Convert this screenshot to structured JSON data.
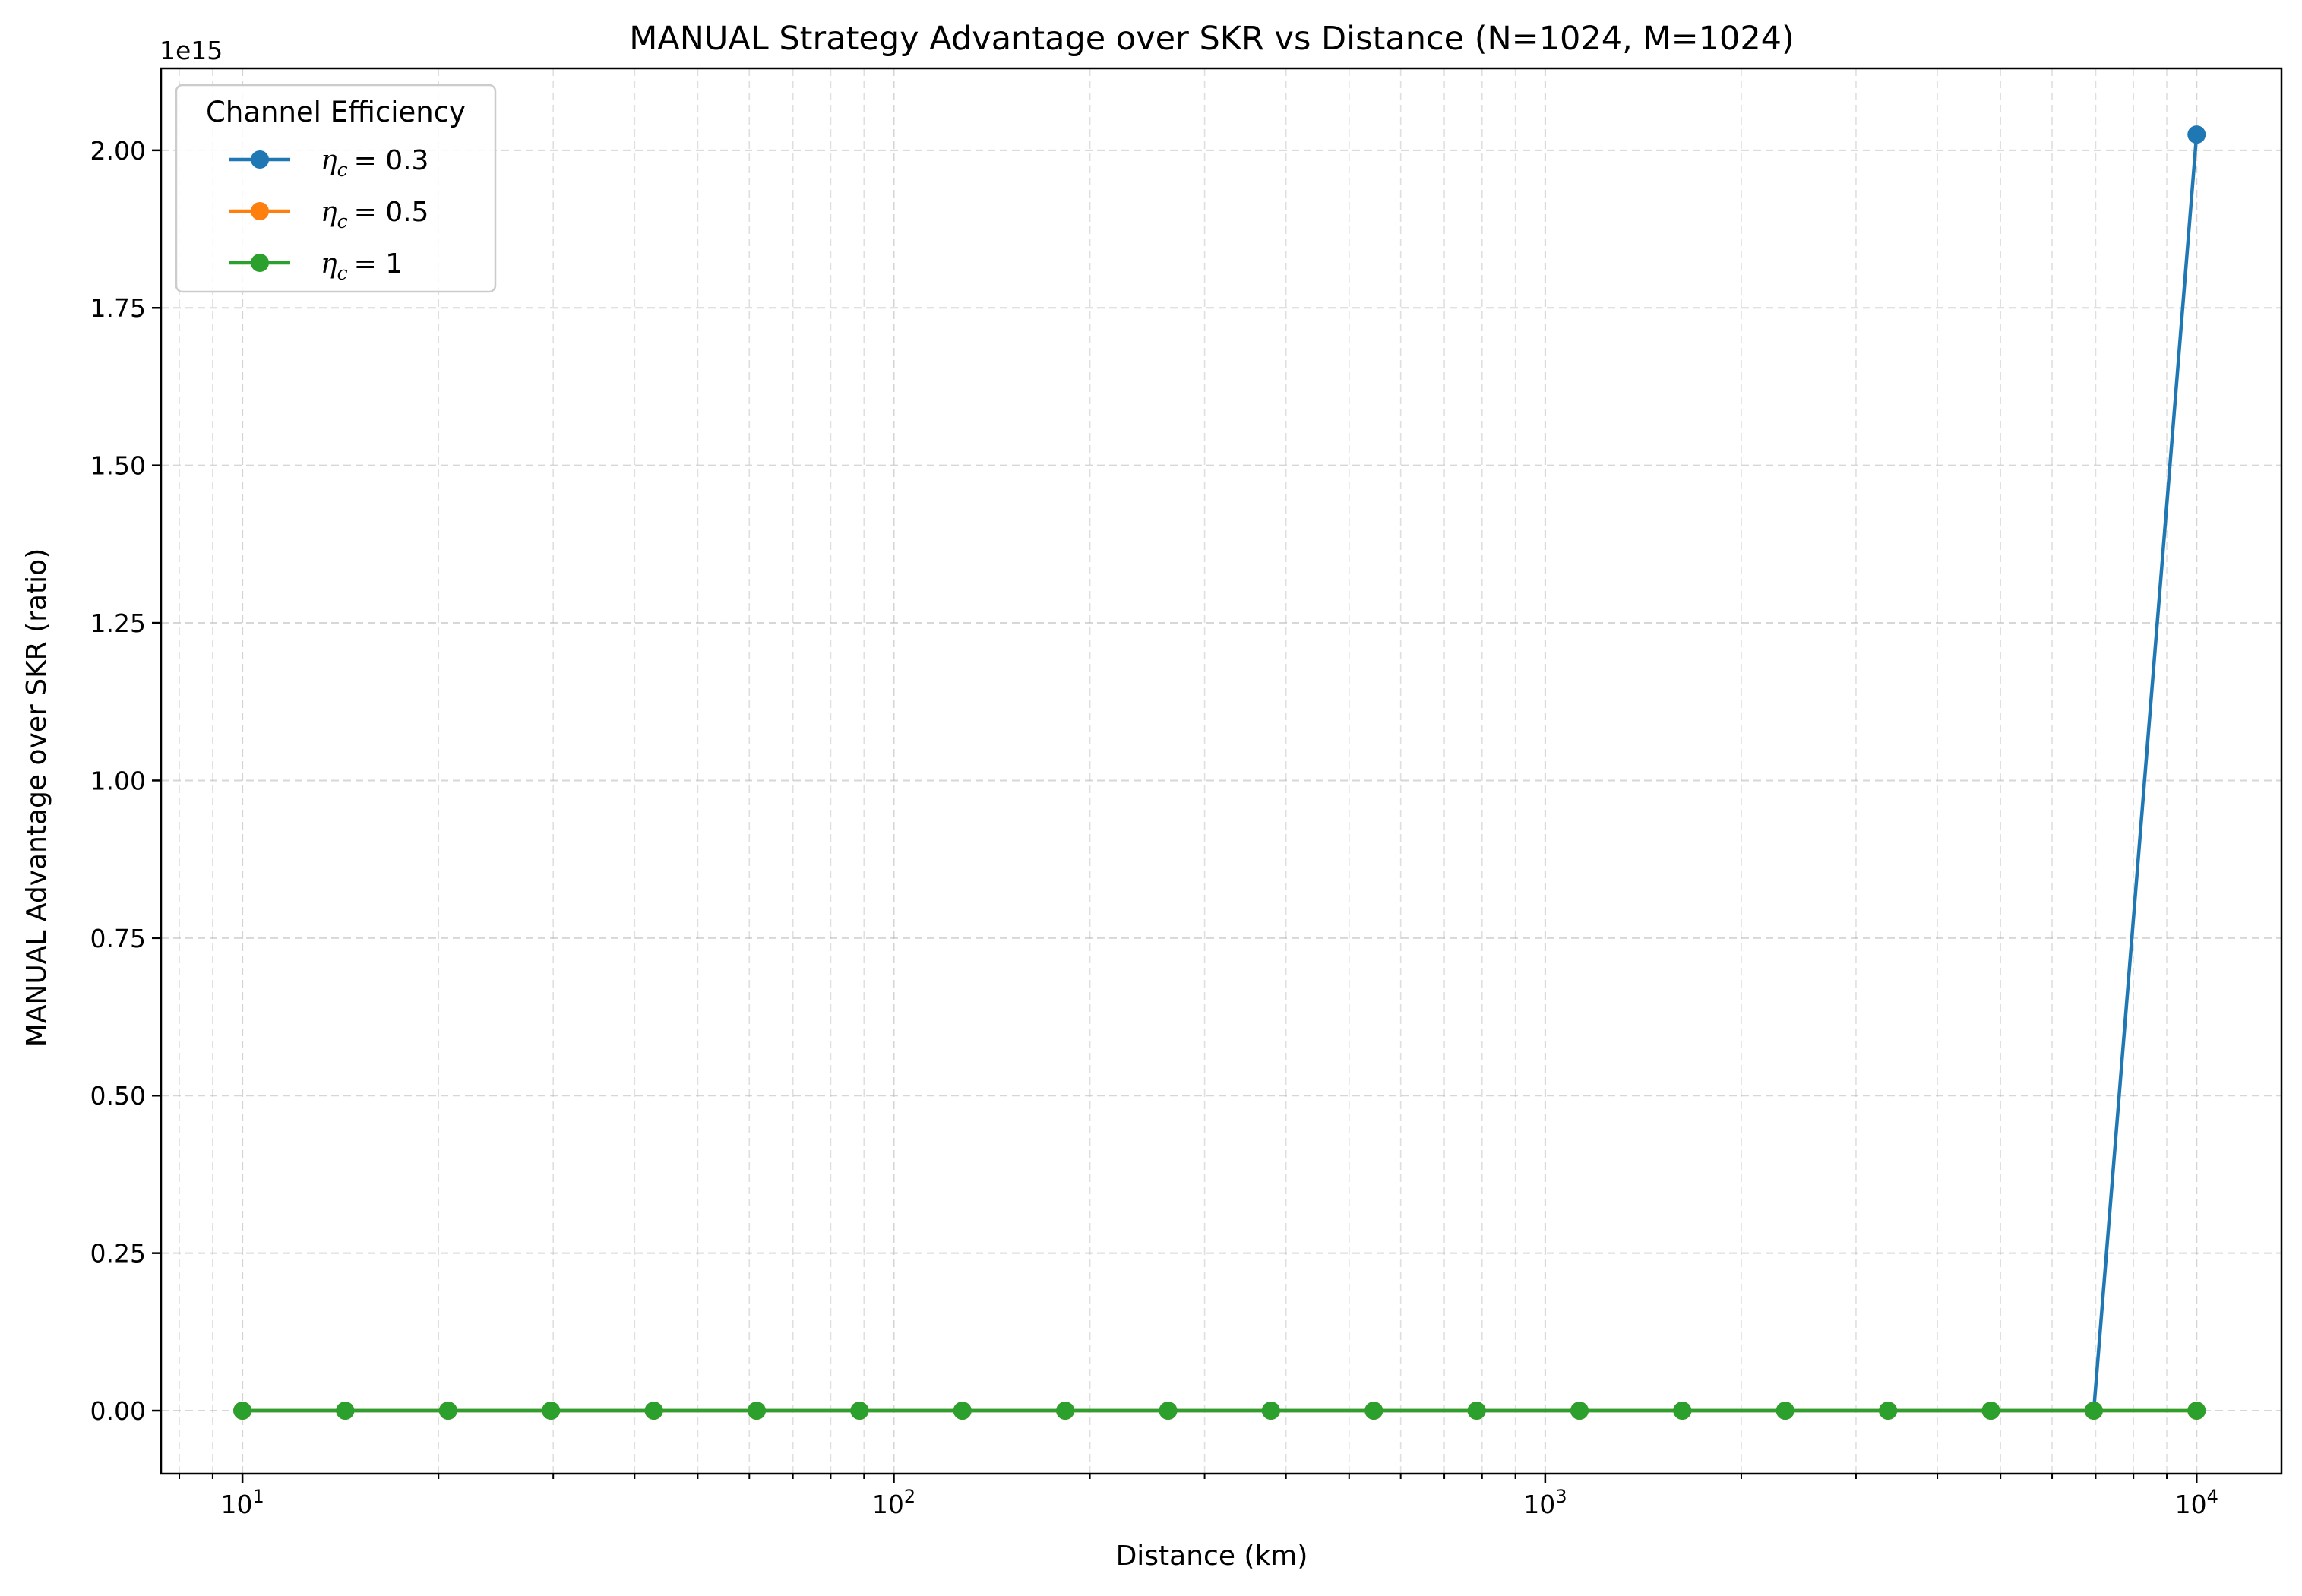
{
  "chart_data": {
    "type": "line",
    "title": "MANUAL Strategy Advantage over SKR vs Distance (N=1024, M=1024)",
    "xlabel": "Distance (km)",
    "ylabel": "MANUAL Advantage over SKR (ratio)",
    "x_scale": "log",
    "xlim": [
      7.5,
      13500
    ],
    "ylim": [
      -100000000000000.0,
      2130000000000000.0
    ],
    "y_offset_label": "1e15",
    "y_ticks": [
      0,
      0.25,
      0.5,
      0.75,
      1.0,
      1.25,
      1.5,
      1.75,
      2.0
    ],
    "y_tick_labels": [
      "0.00",
      "0.25",
      "0.50",
      "0.75",
      "1.00",
      "1.25",
      "1.50",
      "1.75",
      "2.00"
    ],
    "x_ticks": [
      {
        "value": 10,
        "base": "10",
        "exp": "1"
      },
      {
        "value": 100,
        "base": "10",
        "exp": "2"
      },
      {
        "value": 1000,
        "base": "10",
        "exp": "3"
      },
      {
        "value": 10000,
        "base": "10",
        "exp": "4"
      }
    ],
    "grid": true,
    "legend": {
      "title": "Channel Efficiency",
      "placement": "top-left"
    },
    "x": [
      10,
      14.38,
      20.69,
      29.76,
      42.81,
      61.58,
      88.59,
      127.43,
      183.3,
      263.67,
      379.27,
      545.56,
      784.76,
      1128.84,
      1623.78,
      2335.72,
      3359.82,
      4832.93,
      6951.93,
      10000
    ],
    "series": [
      {
        "name": "η_c = 0.3",
        "legend_symbol": "η",
        "legend_sub": "c",
        "legend_value": "= 0.3",
        "color": "#1f77b4",
        "values": [
          0,
          0,
          0,
          0,
          0,
          0,
          0,
          0,
          0,
          0,
          0,
          0,
          0,
          0,
          0,
          0,
          0,
          0,
          0,
          2025000000000000.0
        ]
      },
      {
        "name": "η_c = 0.5",
        "legend_symbol": "η",
        "legend_sub": "c",
        "legend_value": "= 0.5",
        "color": "#ff7f0e",
        "values": [
          0,
          0,
          0,
          0,
          0,
          0,
          0,
          0,
          0,
          0,
          0,
          0,
          0,
          0,
          0,
          0,
          0,
          0,
          0,
          0
        ]
      },
      {
        "name": "η_c = 1",
        "legend_symbol": "η",
        "legend_sub": "c",
        "legend_value": "= 1",
        "color": "#2ca02c",
        "values": [
          0,
          0,
          0,
          0,
          0,
          0,
          0,
          0,
          0,
          0,
          0,
          0,
          0,
          0,
          0,
          0,
          0,
          0,
          0,
          0
        ]
      }
    ]
  }
}
